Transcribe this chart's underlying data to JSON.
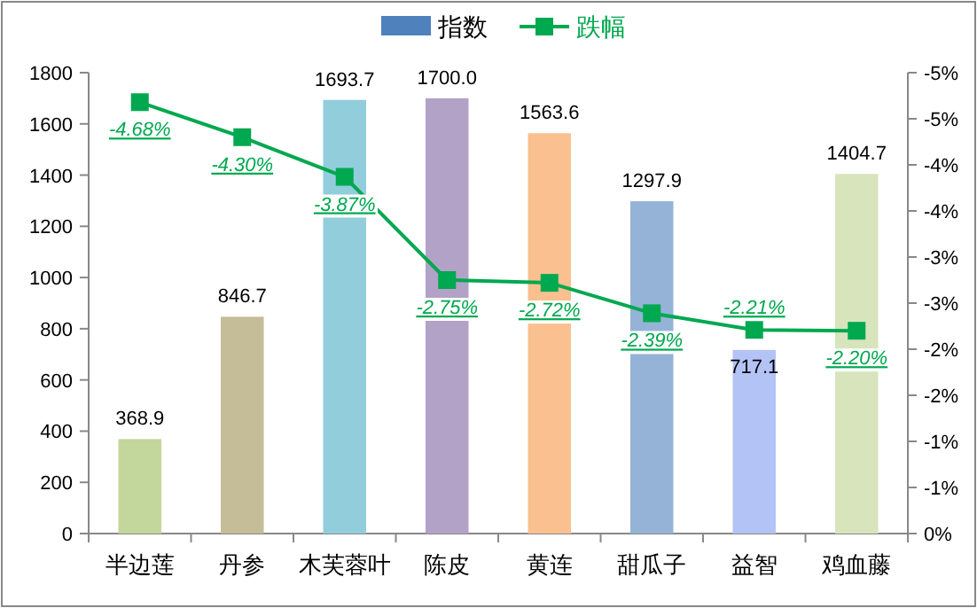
{
  "chart_data": {
    "type": "bar",
    "categories": [
      "半边莲",
      "丹参",
      "木芙蓉叶",
      "陈皮",
      "黄连",
      "甜瓜子",
      "益智",
      "鸡血藤"
    ],
    "series": [
      {
        "name": "指数",
        "color": "#4f81bd",
        "value_labels": [
          "368.9",
          "846.7",
          "1693.7",
          "1700.0",
          "1563.6",
          "1297.9",
          "717.1",
          "1404.7"
        ],
        "colors": [
          "#c3d69b",
          "#c4bd97",
          "#92cddc",
          "#b3a2c7",
          "#fac090",
          "#95b3d7",
          "#b4c3f5",
          "#d7e4bc"
        ],
        "values": [
          368.9,
          846.7,
          1693.7,
          1700.0,
          1563.6,
          1297.9,
          717.1,
          1404.7
        ]
      },
      {
        "name": "跌幅",
        "type": "line",
        "axis": "y2",
        "color": "#00a84f",
        "marker": "square",
        "values": [
          -4.68,
          -4.3,
          -3.87,
          -2.75,
          -2.72,
          -2.39,
          -2.21,
          -2.2
        ],
        "value_labels": [
          "-4.68%",
          "-4.30%",
          "-3.87%",
          "-2.75%",
          "-2.72%",
          "-2.39%",
          "-2.21%",
          "-2.20%"
        ]
      }
    ],
    "data_labels": true,
    "ylim": [
      0,
      1800
    ],
    "yticks": [
      0,
      200,
      400,
      600,
      800,
      1000,
      1200,
      1400,
      1600,
      1800
    ],
    "y2lim": [
      0,
      -5
    ],
    "y2ticks": [
      {
        "value": 0,
        "label": "0%"
      },
      {
        "value": -0.5,
        "label": "-1%"
      },
      {
        "value": -1,
        "label": "-1%"
      },
      {
        "value": -1.5,
        "label": "-2%"
      },
      {
        "value": -2,
        "label": "-2%"
      },
      {
        "value": -2.5,
        "label": "-3%"
      },
      {
        "value": -3,
        "label": "-3%"
      },
      {
        "value": -3.5,
        "label": "-4%"
      },
      {
        "value": -4,
        "label": "-4%"
      },
      {
        "value": -4.5,
        "label": "-5%"
      },
      {
        "value": -5,
        "label": "-5%"
      }
    ],
    "grid": false,
    "legend": "top"
  }
}
